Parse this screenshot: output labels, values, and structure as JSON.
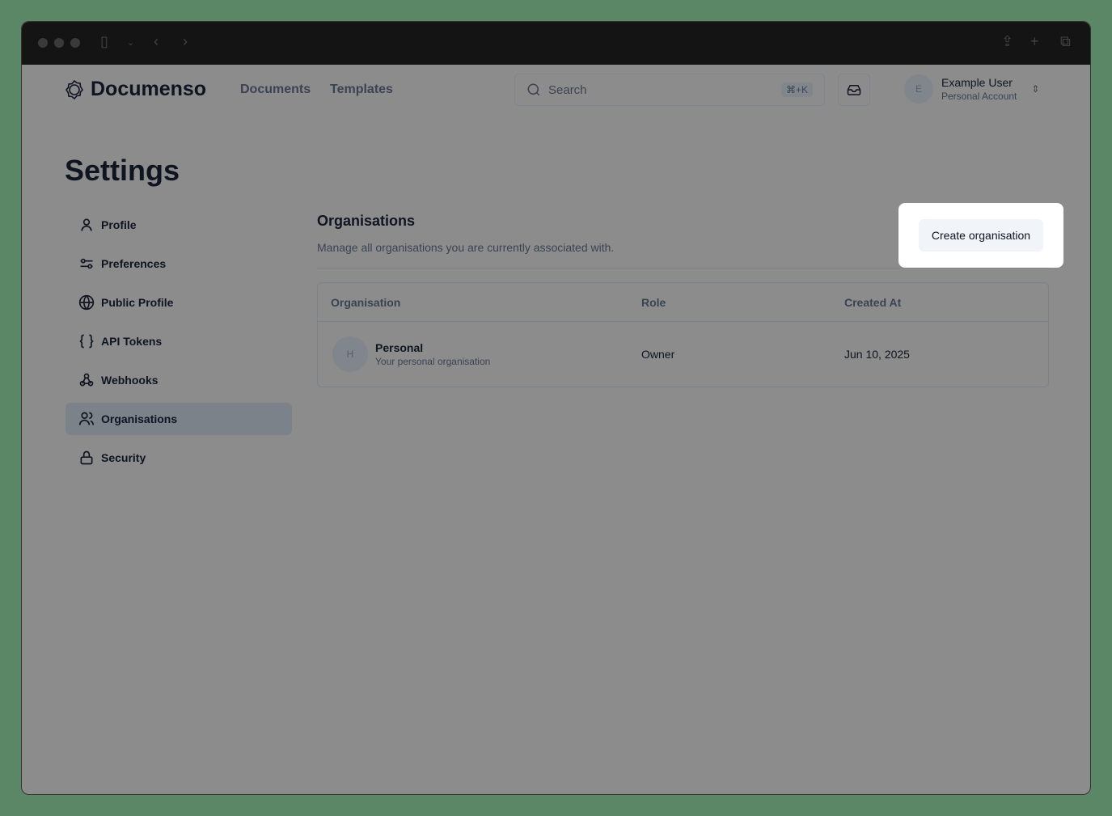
{
  "app": {
    "name": "Documenso"
  },
  "nav": {
    "documents": "Documents",
    "templates": "Templates"
  },
  "search": {
    "placeholder": "Search",
    "shortcut": "⌘+K"
  },
  "user": {
    "initial": "E",
    "name": "Example User",
    "account": "Personal Account"
  },
  "page": {
    "title": "Settings"
  },
  "sidebar": {
    "items": [
      {
        "label": "Profile",
        "icon": "user-icon"
      },
      {
        "label": "Preferences",
        "icon": "sliders-icon"
      },
      {
        "label": "Public Profile",
        "icon": "globe-icon"
      },
      {
        "label": "API Tokens",
        "icon": "braces-icon"
      },
      {
        "label": "Webhooks",
        "icon": "webhook-icon"
      },
      {
        "label": "Organisations",
        "icon": "users-icon",
        "active": true
      },
      {
        "label": "Security",
        "icon": "lock-icon"
      }
    ]
  },
  "main": {
    "title": "Organisations",
    "description": "Manage all organisations you are currently associated with.",
    "create_label": "Create organisation",
    "table": {
      "headers": [
        "Organisation",
        "Role",
        "Created At"
      ],
      "rows": [
        {
          "initial": "H",
          "name": "Personal",
          "subtitle": "Your personal organisation",
          "role": "Owner",
          "created": "Jun 10, 2025"
        }
      ]
    }
  }
}
